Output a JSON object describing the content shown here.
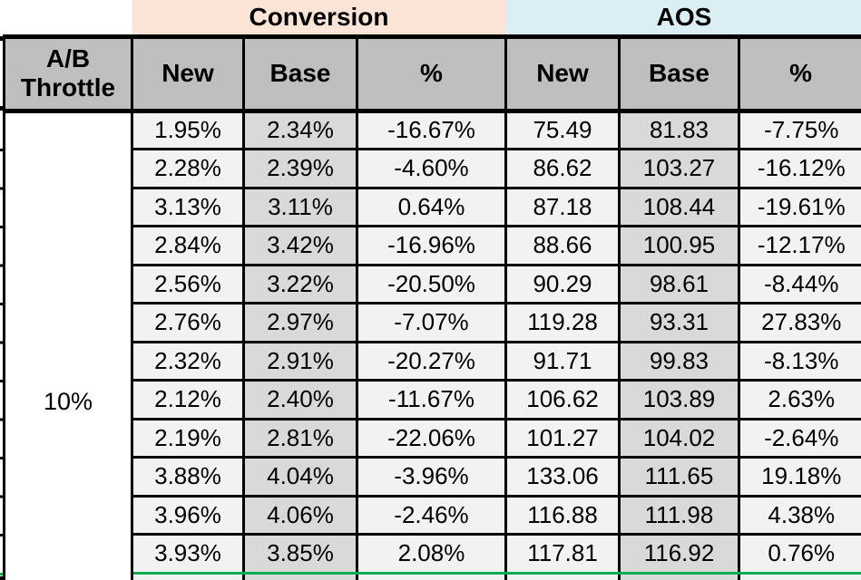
{
  "table": {
    "group_headers": [
      {
        "label": "Conversion"
      },
      {
        "label": "AOS"
      }
    ],
    "row_header": {
      "line1": "A/B",
      "line2": "Throttle"
    },
    "col_headers": [
      "New",
      "Base",
      "%",
      "New",
      "Base",
      "%"
    ],
    "throttle_value": "10%",
    "rows": [
      {
        "cells": [
          "1.95%",
          "2.34%",
          "-16.67%",
          "75.49",
          "81.83",
          "-7.75%"
        ]
      },
      {
        "cells": [
          "2.28%",
          "2.39%",
          "-4.60%",
          "86.62",
          "103.27",
          "-16.12%"
        ]
      },
      {
        "cells": [
          "3.13%",
          "3.11%",
          "0.64%",
          "87.18",
          "108.44",
          "-19.61%"
        ]
      },
      {
        "cells": [
          "2.84%",
          "3.42%",
          "-16.96%",
          "88.66",
          "100.95",
          "-12.17%"
        ]
      },
      {
        "cells": [
          "2.56%",
          "3.22%",
          "-20.50%",
          "90.29",
          "98.61",
          "-8.44%"
        ]
      },
      {
        "cells": [
          "2.76%",
          "2.97%",
          "-7.07%",
          "119.28",
          "93.31",
          "27.83%"
        ]
      },
      {
        "cells": [
          "2.32%",
          "2.91%",
          "-20.27%",
          "91.71",
          "99.83",
          "-8.13%"
        ]
      },
      {
        "cells": [
          "2.12%",
          "2.40%",
          "-11.67%",
          "106.62",
          "103.89",
          "2.63%"
        ]
      },
      {
        "cells": [
          "2.19%",
          "2.81%",
          "-22.06%",
          "101.27",
          "104.02",
          "-2.64%"
        ]
      },
      {
        "cells": [
          "3.88%",
          "4.04%",
          "-3.96%",
          "133.06",
          "111.65",
          "19.18%"
        ]
      },
      {
        "cells": [
          "3.96%",
          "4.06%",
          "-2.46%",
          "116.88",
          "111.98",
          "4.38%"
        ]
      },
      {
        "cells": [
          "3.93%",
          "3.85%",
          "2.08%",
          "117.81",
          "116.92",
          "0.76%"
        ]
      }
    ]
  },
  "colors": {
    "conversion_band": "#FCE4D6",
    "aos_band": "#DAEEF3",
    "header_gray": "#BFBFBF",
    "cell_light": "#F2F2F2",
    "cell_base": "#D9D9D9",
    "grid_black": "#000000",
    "section_divider_green": "#00B050",
    "background": "#FFFFFF"
  }
}
